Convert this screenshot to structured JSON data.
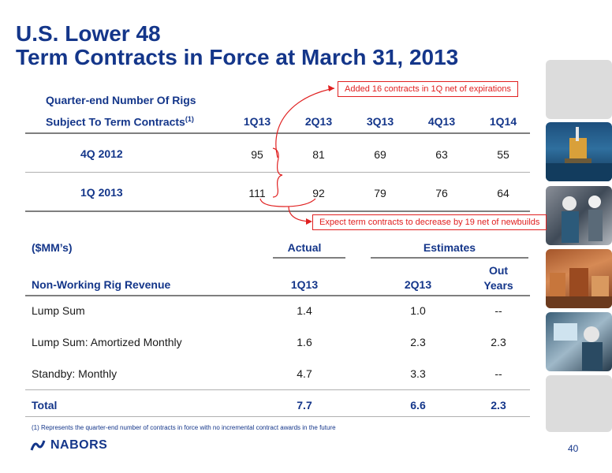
{
  "title": {
    "line1": "U.S. Lower 48",
    "line2": "Term Contracts in Force at March 31, 2013"
  },
  "rigs_table": {
    "header_line1": "Quarter-end Number Of Rigs",
    "header_line2": "Subject To Term Contracts",
    "header_footnote_ref": "(1)",
    "columns": [
      "1Q13",
      "2Q13",
      "3Q13",
      "4Q13",
      "1Q14"
    ],
    "rows": [
      {
        "label": "4Q 2012",
        "values": [
          "95",
          "81",
          "69",
          "63",
          "55"
        ]
      },
      {
        "label": "1Q 2013",
        "values": [
          "111",
          "92",
          "79",
          "76",
          "64"
        ]
      }
    ]
  },
  "callouts": {
    "added": "Added 16 contracts in 1Q net of expirations",
    "expect": "Expect term contracts to decrease by 19 net of newbuilds"
  },
  "revenue_table": {
    "unit": "($MM’s)",
    "actual_header": "Actual",
    "estimates_header": "Estimates",
    "label_header": "Non-Working Rig Revenue",
    "col_headers": [
      "1Q13",
      "2Q13",
      "Out\nYears"
    ],
    "out_years_line1": "Out",
    "out_years_line2": "Years",
    "rows": [
      {
        "label": "Lump Sum",
        "values": [
          "1.4",
          "1.0",
          "--"
        ]
      },
      {
        "label": "Lump Sum: Amortized Monthly",
        "values": [
          "1.6",
          "2.3",
          "2.3"
        ]
      },
      {
        "label": "Standby: Monthly",
        "values": [
          "4.7",
          "3.3",
          "--"
        ]
      }
    ],
    "total": {
      "label": "Total",
      "values": [
        "7.7",
        "6.6",
        "2.3"
      ]
    }
  },
  "footnote": "(1)    Represents the quarter-end number of contracts in force with no incremental contract awards in the future",
  "logo_text": "NABORS",
  "page_number": "40",
  "colors": {
    "brand_blue": "#14368a",
    "callout_red": "#e02020"
  }
}
